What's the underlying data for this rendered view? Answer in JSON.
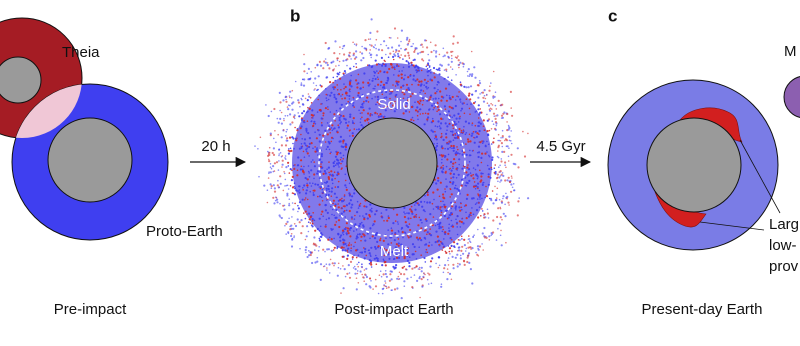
{
  "panels": [
    {
      "labels": [
        "Theia",
        "Proto-Earth"
      ],
      "caption": "Pre-impact"
    },
    {
      "letter": "b",
      "labels": [
        "Solid",
        "Melt"
      ],
      "caption": "Post-impact Earth"
    },
    {
      "letter": "c",
      "labels": [
        "M",
        "Larg",
        "low-",
        "prov"
      ],
      "caption": "Present-day Earth"
    }
  ],
  "arrows": [
    "20 h",
    "4.5 Gyr"
  ]
}
